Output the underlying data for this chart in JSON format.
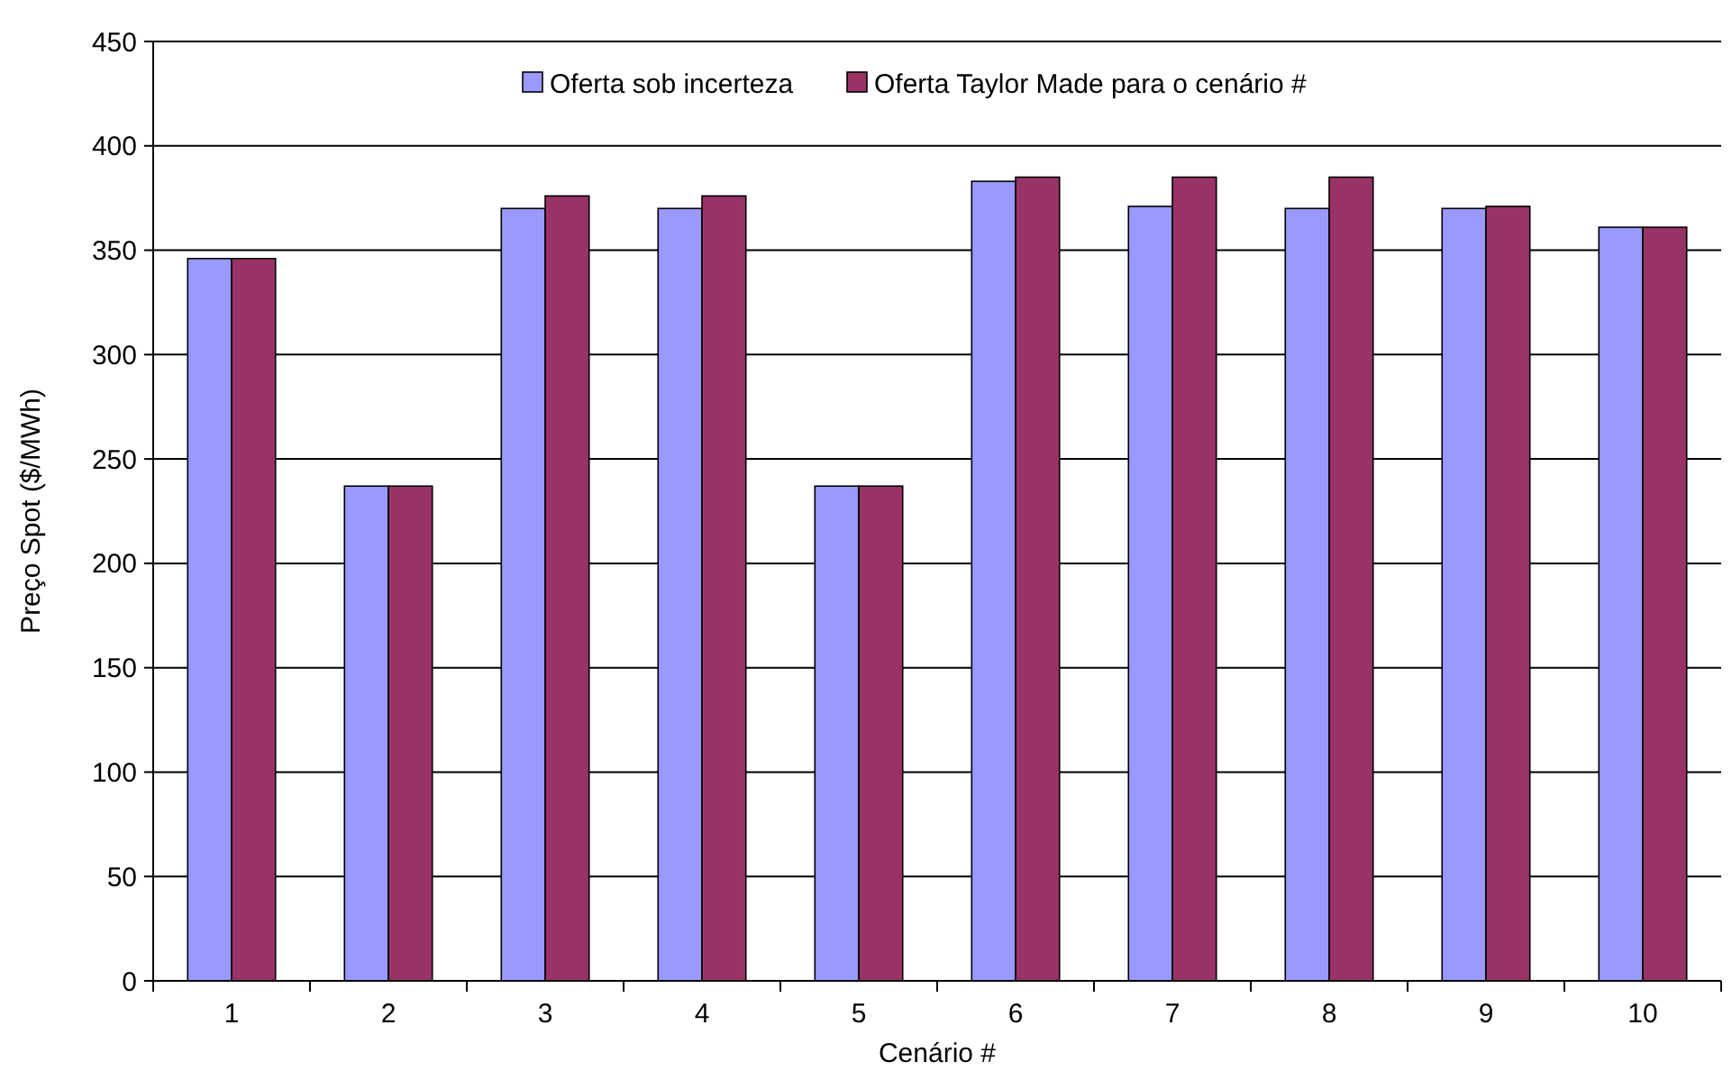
{
  "chart_data": {
    "type": "bar",
    "xlabel": "Cenário #",
    "ylabel": "Preço Spot ($/MWh)",
    "categories": [
      "1",
      "2",
      "3",
      "4",
      "5",
      "6",
      "7",
      "8",
      "9",
      "10"
    ],
    "series": [
      {
        "name": "Oferta sob incerteza",
        "color": "#9999ff",
        "values": [
          346,
          237,
          370,
          370,
          237,
          383,
          371,
          370,
          370,
          361
        ]
      },
      {
        "name": "Oferta Taylor Made para o cenário #",
        "color": "#993366",
        "values": [
          346,
          237,
          376,
          376,
          237,
          385,
          385,
          385,
          371,
          361
        ]
      }
    ],
    "ylim": [
      0,
      450
    ],
    "yticks": [
      0,
      50,
      100,
      150,
      200,
      250,
      300,
      350,
      400,
      450
    ],
    "grid": "y",
    "legend": "top"
  }
}
